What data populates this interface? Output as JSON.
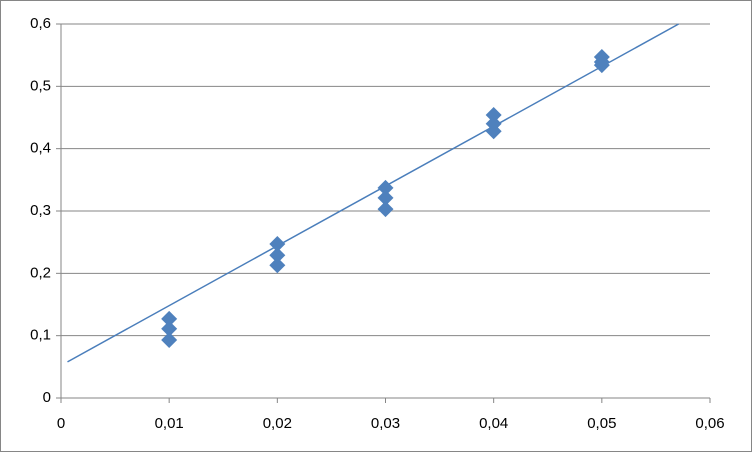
{
  "chart_data": {
    "type": "scatter",
    "x": [
      0.01,
      0.01,
      0.01,
      0.02,
      0.02,
      0.02,
      0.03,
      0.03,
      0.03,
      0.04,
      0.04,
      0.04,
      0.05,
      0.05,
      0.05
    ],
    "values": [
      0.127,
      0.111,
      0.093,
      0.247,
      0.229,
      0.213,
      0.337,
      0.321,
      0.303,
      0.454,
      0.44,
      0.428,
      0.547,
      0.539,
      0.534
    ],
    "color": "#4f81bd",
    "trendline": {
      "x": [
        0.0006,
        0.0571
      ],
      "values": [
        0.058,
        0.6
      ],
      "color": "#4a7ebb"
    },
    "xlim": [
      0,
      0.06
    ],
    "xticks": [
      0,
      {
        "value": 0.01,
        "label": "0,01"
      },
      {
        "value": 0.02,
        "label": "0,02"
      },
      {
        "value": 0.03,
        "label": "0,03"
      },
      {
        "value": 0.04,
        "label": "0,04"
      },
      {
        "value": 0.05,
        "label": "0,05"
      },
      {
        "value": 0.06,
        "label": "0,06"
      }
    ],
    "ylim": [
      0,
      0.6
    ],
    "yticks": [
      0,
      {
        "value": 0.1,
        "label": "0,1"
      },
      {
        "value": 0.2,
        "label": "0,2"
      },
      {
        "value": 0.3,
        "label": "0,3"
      },
      {
        "value": 0.4,
        "label": "0,4"
      },
      {
        "value": 0.5,
        "label": "0,5"
      },
      {
        "value": 0.6,
        "label": "0,6"
      }
    ],
    "grid": true
  }
}
